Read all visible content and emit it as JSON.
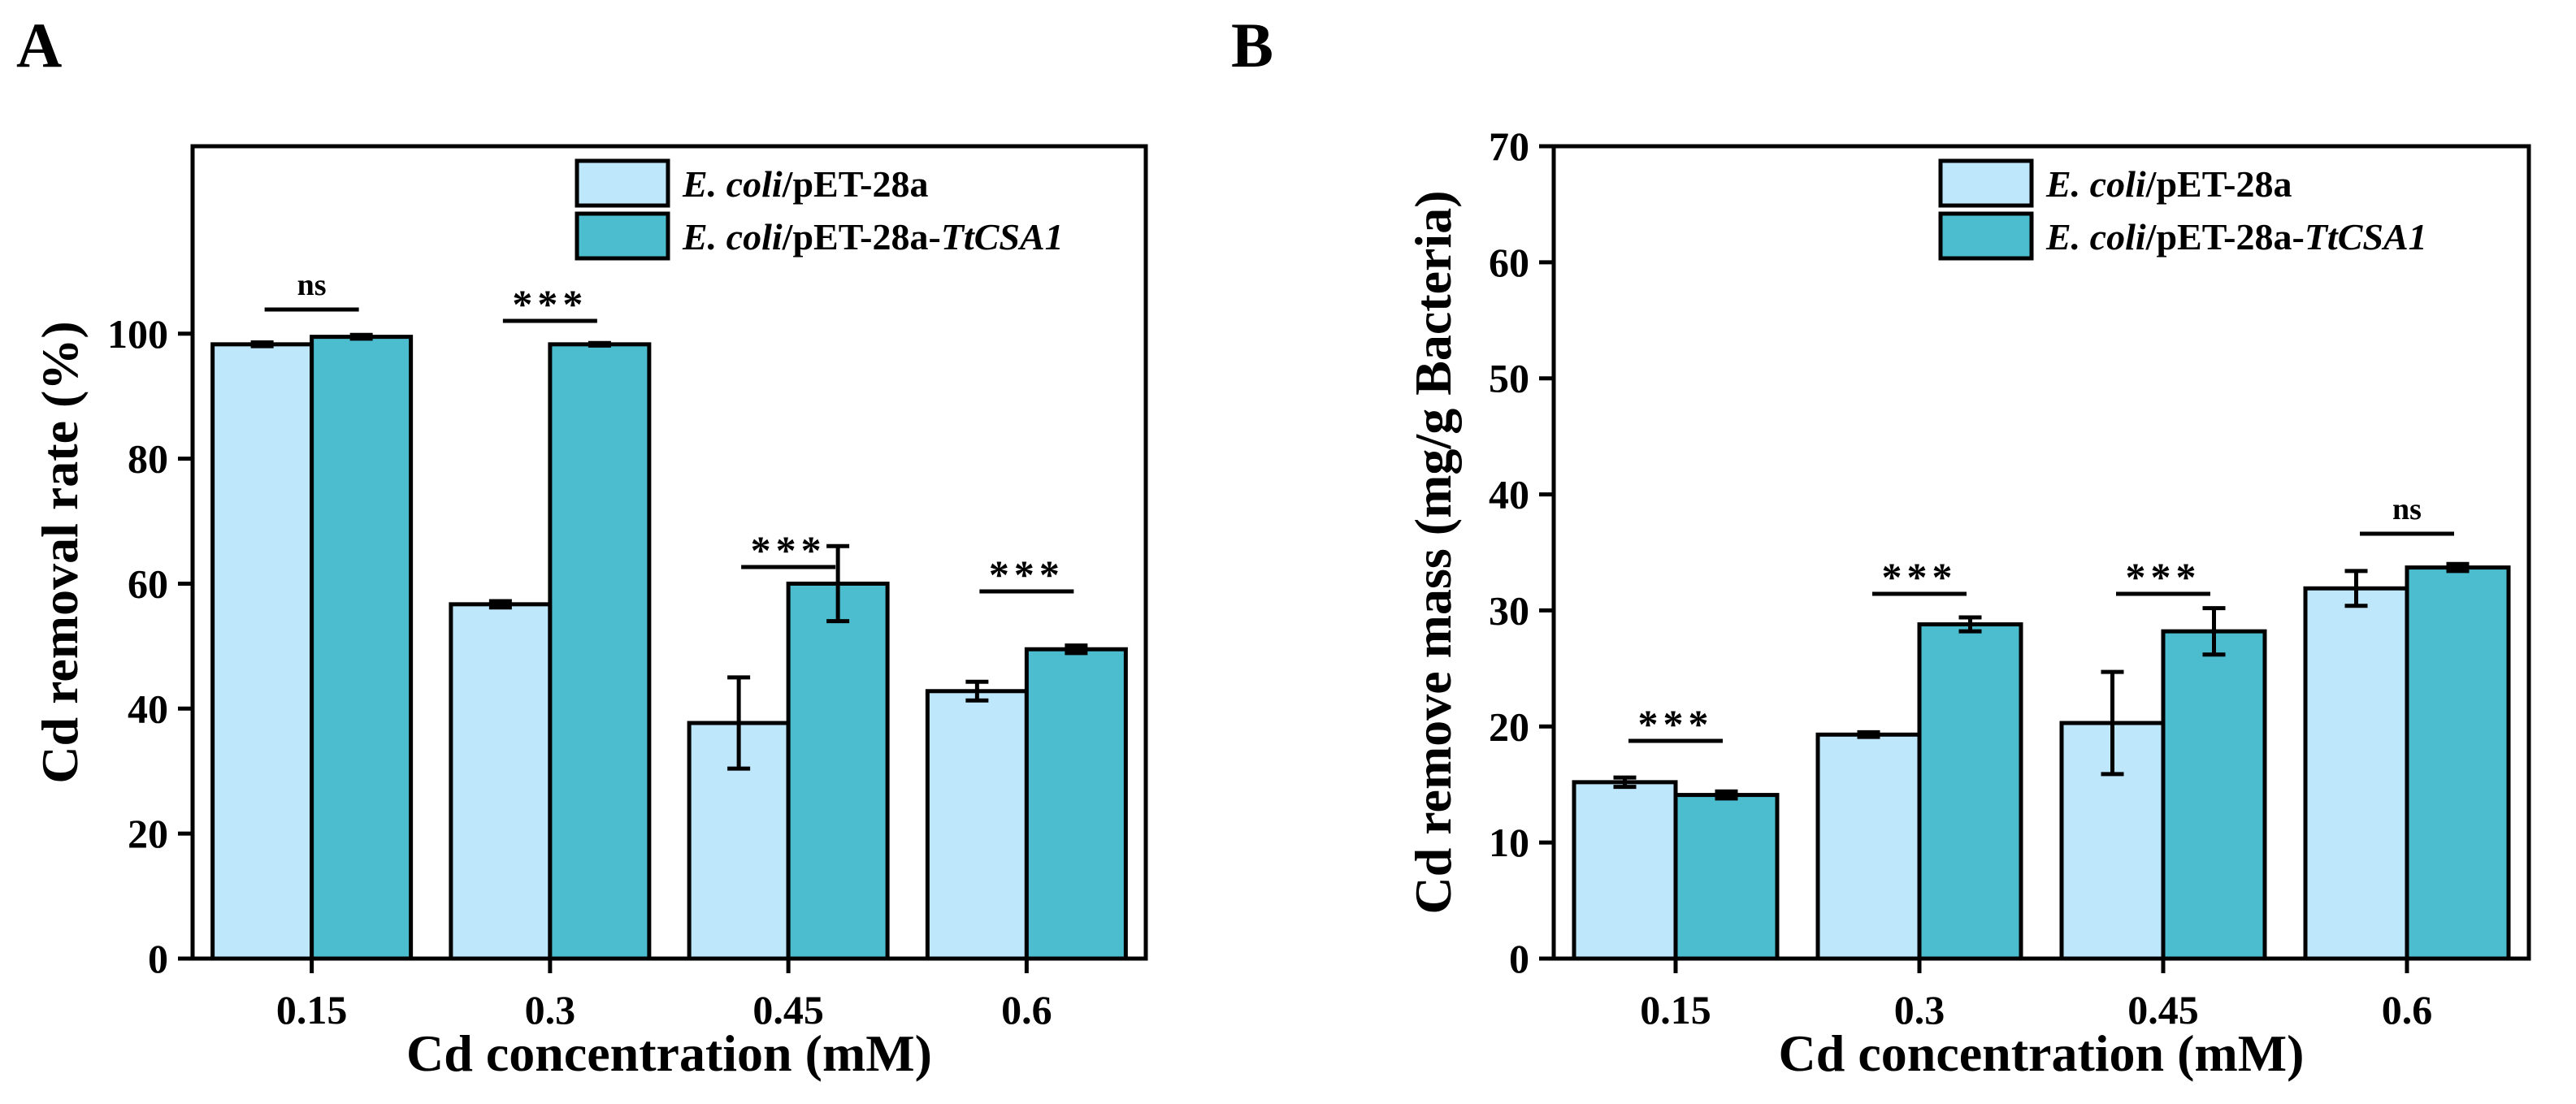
{
  "figure": {
    "colors": {
      "series_1": "#bfe7fb",
      "series_2": "#4bbdcf",
      "stroke": "#000000"
    }
  },
  "chart_data": [
    {
      "panel": "A",
      "type": "bar",
      "title": "",
      "xlabel": "Cd concentration (mM)",
      "ylabel": "Cd removal rate (%)",
      "ylim": [
        0,
        130
      ],
      "yticks": [
        0,
        20,
        40,
        60,
        80,
        100
      ],
      "categories": [
        "0.15",
        "0.3",
        "0.45",
        "0.6"
      ],
      "series": [
        {
          "name_italic": "E. coli",
          "name_plain": "/pET-28a",
          "name_italic_suffix": "",
          "values": [
            98.3,
            56.7,
            37.7,
            42.8
          ],
          "errors": [
            0.3,
            0.5,
            7.3,
            1.5
          ]
        },
        {
          "name_italic": "E. coli",
          "name_plain": "/pET-28a-",
          "name_italic_suffix": "TtCSA1",
          "values": [
            99.5,
            98.3,
            60.0,
            49.5
          ],
          "errors": [
            0.3,
            0.2,
            6.0,
            0.6
          ]
        }
      ],
      "significance": [
        "ns",
        "***",
        "***",
        "***"
      ],
      "legend_position": "top-right",
      "grid": false
    },
    {
      "panel": "B",
      "type": "bar",
      "title": "",
      "xlabel": "Cd concentration (mM)",
      "ylabel": "Cd remove mass (mg/g Bacteria)",
      "ylim": [
        0,
        70
      ],
      "yticks": [
        0,
        10,
        20,
        30,
        40,
        50,
        60,
        70
      ],
      "categories": [
        "0.15",
        "0.3",
        "0.45",
        "0.6"
      ],
      "series": [
        {
          "name_italic": "E. coli",
          "name_plain": "/pET-28a",
          "name_italic_suffix": "",
          "values": [
            15.2,
            19.3,
            20.3,
            31.9
          ],
          "errors": [
            0.4,
            0.2,
            4.4,
            1.5
          ]
        },
        {
          "name_italic": "E. coli",
          "name_plain": "/pET-28a-",
          "name_italic_suffix": "TtCSA1",
          "values": [
            14.1,
            28.8,
            28.2,
            33.7
          ],
          "errors": [
            0.3,
            0.6,
            2.0,
            0.3
          ]
        }
      ],
      "significance": [
        "***",
        "***",
        "***",
        "ns"
      ],
      "legend_position": "top-right",
      "grid": false
    }
  ]
}
